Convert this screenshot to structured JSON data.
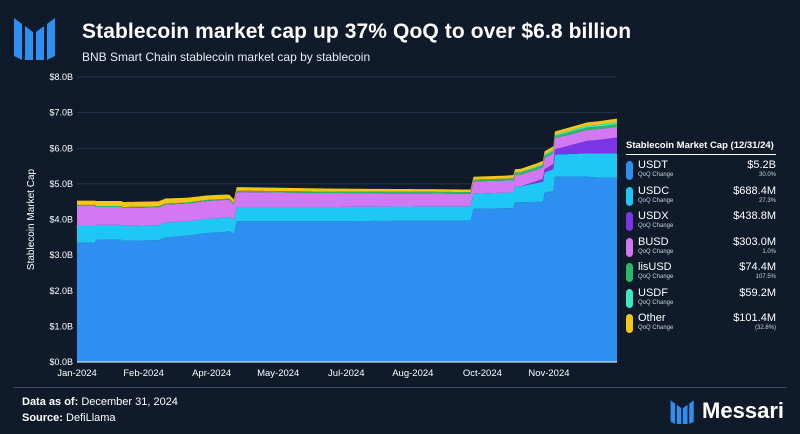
{
  "header": {
    "title": "Stablecoin market cap up 37% QoQ to over $6.8 billion",
    "subtitle": "BNB Smart Chain stablecoin market cap by stablecoin"
  },
  "footer": {
    "data_as_of_label": "Data as of:",
    "data_as_of_value": "December 31, 2024",
    "source_label": "Source:",
    "source_value": "DefiLlama",
    "brand": "Messari"
  },
  "colors": {
    "background": "#0f1a2b",
    "USDT": "#2d8ff0",
    "USDC": "#1ec8f5",
    "USDX": "#7b35e6",
    "BUSD": "#d278f2",
    "lisUSD": "#2db865",
    "USDF": "#3ee8c0",
    "Other": "#f5c518"
  },
  "chart_data": {
    "type": "area",
    "stacked": true,
    "ylabel": "Stablecoin Market Cap",
    "ylim": [
      0,
      8
    ],
    "y_unit": "billions USD",
    "yticks": [
      "$0.0B",
      "$1.0B",
      "$2.0B",
      "$3.0B",
      "$4.0B",
      "$5.0B",
      "$6.0B",
      "$7.0B",
      "$8.0B"
    ],
    "xtick_labels": [
      "Jan-2024",
      "Feb-2024",
      "Apr-2024",
      "May-2024",
      "Jul-2024",
      "Aug-2024",
      "Oct-2024",
      "Nov-2024"
    ],
    "xtick_days": [
      0,
      45,
      91,
      136,
      182,
      227,
      274,
      319
    ],
    "x_start": "2024-01-01",
    "x_end_day": 365,
    "grid": true,
    "series": [
      {
        "name": "USDT",
        "points": [
          [
            0,
            3.35
          ],
          [
            12,
            3.35
          ],
          [
            12,
            3.43
          ],
          [
            30,
            3.43
          ],
          [
            30,
            3.4
          ],
          [
            55,
            3.42
          ],
          [
            60,
            3.5
          ],
          [
            75,
            3.55
          ],
          [
            88,
            3.62
          ],
          [
            100,
            3.65
          ],
          [
            103,
            3.68
          ],
          [
            106,
            3.58
          ],
          [
            108,
            3.95
          ],
          [
            130,
            3.95
          ],
          [
            170,
            3.95
          ],
          [
            200,
            3.96
          ],
          [
            240,
            3.97
          ],
          [
            266,
            3.97
          ],
          [
            268,
            4.3
          ],
          [
            295,
            4.32
          ],
          [
            296,
            4.48
          ],
          [
            315,
            4.5
          ],
          [
            316,
            4.75
          ],
          [
            322,
            4.8
          ],
          [
            323,
            5.2
          ],
          [
            345,
            5.2
          ],
          [
            352,
            5.18
          ],
          [
            365,
            5.17
          ]
        ]
      },
      {
        "name": "USDC",
        "points": [
          [
            0,
            0.48
          ],
          [
            12,
            0.48
          ],
          [
            12,
            0.42
          ],
          [
            60,
            0.42
          ],
          [
            75,
            0.4
          ],
          [
            100,
            0.4
          ],
          [
            108,
            0.4
          ],
          [
            130,
            0.4
          ],
          [
            160,
            0.4
          ],
          [
            180,
            0.4
          ],
          [
            200,
            0.4
          ],
          [
            240,
            0.4
          ],
          [
            266,
            0.4
          ],
          [
            268,
            0.42
          ],
          [
            300,
            0.45
          ],
          [
            323,
            0.62
          ],
          [
            345,
            0.66
          ],
          [
            365,
            0.69
          ]
        ]
      },
      {
        "name": "USDX",
        "points": [
          [
            0,
            0
          ],
          [
            300,
            0
          ],
          [
            310,
            0.05
          ],
          [
            323,
            0.15
          ],
          [
            345,
            0.35
          ],
          [
            365,
            0.44
          ]
        ]
      },
      {
        "name": "BUSD",
        "points": [
          [
            0,
            0.55
          ],
          [
            12,
            0.55
          ],
          [
            12,
            0.5
          ],
          [
            60,
            0.5
          ],
          [
            100,
            0.5
          ],
          [
            108,
            0.42
          ],
          [
            200,
            0.38
          ],
          [
            266,
            0.35
          ],
          [
            268,
            0.35
          ],
          [
            300,
            0.33
          ],
          [
            323,
            0.31
          ],
          [
            365,
            0.3
          ]
        ]
      },
      {
        "name": "lisUSD",
        "points": [
          [
            0,
            0.03
          ],
          [
            100,
            0.03
          ],
          [
            108,
            0.04
          ],
          [
            200,
            0.04
          ],
          [
            266,
            0.05
          ],
          [
            323,
            0.06
          ],
          [
            365,
            0.074
          ]
        ]
      },
      {
        "name": "USDF",
        "points": [
          [
            0,
            0
          ],
          [
            290,
            0
          ],
          [
            300,
            0.02
          ],
          [
            323,
            0.04
          ],
          [
            365,
            0.059
          ]
        ]
      },
      {
        "name": "Other",
        "points": [
          [
            0,
            0.12
          ],
          [
            12,
            0.12
          ],
          [
            12,
            0.14
          ],
          [
            60,
            0.14
          ],
          [
            100,
            0.12
          ],
          [
            108,
            0.1
          ],
          [
            200,
            0.08
          ],
          [
            266,
            0.07
          ],
          [
            268,
            0.08
          ],
          [
            323,
            0.09
          ],
          [
            365,
            0.1
          ]
        ]
      }
    ],
    "legend": {
      "title": "Stablecoin Market Cap (12/31/24)",
      "sublabel": "QoQ Change",
      "entries": [
        {
          "name": "USDT",
          "value": "$5.2B",
          "change": "30.0%"
        },
        {
          "name": "USDC",
          "value": "$688.4M",
          "change": "27.3%"
        },
        {
          "name": "USDX",
          "value": "$438.8M",
          "change": ""
        },
        {
          "name": "BUSD",
          "value": "$303.0M",
          "change": "1.0%"
        },
        {
          "name": "lisUSD",
          "value": "$74.4M",
          "change": "107.5%"
        },
        {
          "name": "USDF",
          "value": "$59.2M",
          "change": ""
        },
        {
          "name": "Other",
          "value": "$101.4M",
          "change": "(32.8%)"
        }
      ]
    }
  }
}
